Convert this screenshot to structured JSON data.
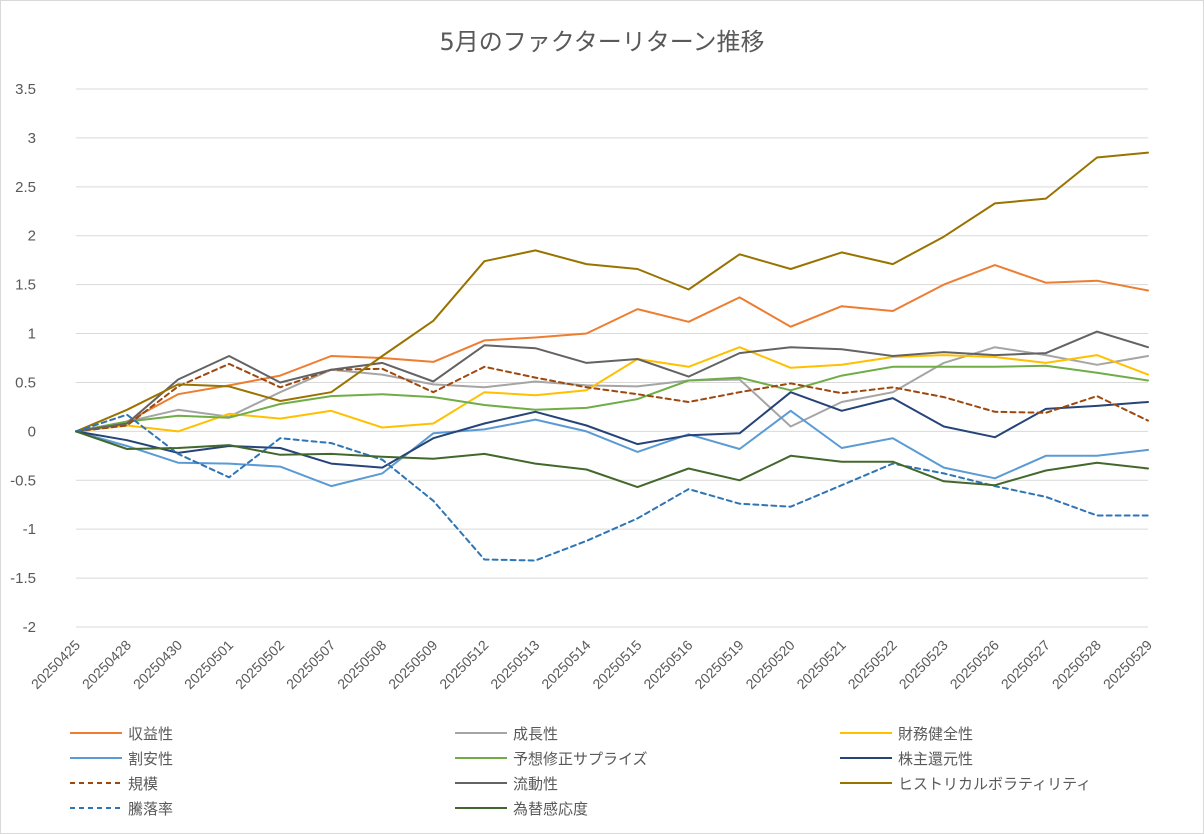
{
  "chart_data": {
    "type": "line",
    "title": "5月のファクターリターン推移",
    "xlabel": "",
    "ylabel": "",
    "ylim": [
      -2,
      3.5
    ],
    "y_ticks": [
      "3.5",
      "3",
      "2.5",
      "2",
      "1.5",
      "1",
      "0.5",
      "0",
      "-0.5",
      "-1",
      "-1.5",
      "-2"
    ],
    "grid": true,
    "legend_position": "bottom",
    "categories": [
      "20250425",
      "20250428",
      "20250430",
      "20250501",
      "20250502",
      "20250507",
      "20250508",
      "20250509",
      "20250512",
      "20250513",
      "20250514",
      "20250515",
      "20250516",
      "20250519",
      "20250520",
      "20250521",
      "20250522",
      "20250523",
      "20250526",
      "20250527",
      "20250528",
      "20250529"
    ],
    "series": [
      {
        "name": "収益性",
        "color": "#ED7D31",
        "dash": "solid",
        "values": [
          0,
          0.1,
          0.38,
          0.47,
          0.57,
          0.77,
          0.75,
          0.71,
          0.93,
          0.96,
          1.0,
          1.25,
          1.12,
          1.37,
          1.07,
          1.28,
          1.23,
          1.5,
          1.7,
          1.52,
          1.54,
          1.44
        ]
      },
      {
        "name": "成長性",
        "color": "#A5A5A5",
        "dash": "solid",
        "values": [
          0,
          0.1,
          0.22,
          0.15,
          0.4,
          0.63,
          0.58,
          0.48,
          0.45,
          0.51,
          0.47,
          0.46,
          0.52,
          0.53,
          0.05,
          0.3,
          0.4,
          0.7,
          0.86,
          0.78,
          0.68,
          0.77
        ]
      },
      {
        "name": "財務健全性",
        "color": "#FFC000",
        "dash": "solid",
        "values": [
          0,
          0.06,
          0.0,
          0.18,
          0.13,
          0.21,
          0.04,
          0.08,
          0.4,
          0.37,
          0.42,
          0.74,
          0.66,
          0.86,
          0.65,
          0.68,
          0.76,
          0.78,
          0.76,
          0.7,
          0.78,
          0.58
        ]
      },
      {
        "name": "割安性",
        "color": "#5B9BD5",
        "dash": "solid",
        "values": [
          0,
          -0.15,
          -0.32,
          -0.33,
          -0.36,
          -0.56,
          -0.43,
          -0.02,
          0.02,
          0.12,
          0.0,
          -0.21,
          -0.03,
          -0.18,
          0.21,
          -0.17,
          -0.07,
          -0.37,
          -0.48,
          -0.25,
          -0.25,
          -0.19
        ]
      },
      {
        "name": "予想修正サプライズ",
        "color": "#70AD47",
        "dash": "solid",
        "values": [
          0,
          0.1,
          0.16,
          0.14,
          0.28,
          0.36,
          0.38,
          0.35,
          0.27,
          0.22,
          0.24,
          0.33,
          0.52,
          0.55,
          0.42,
          0.57,
          0.66,
          0.66,
          0.66,
          0.67,
          0.6,
          0.52
        ]
      },
      {
        "name": "株主還元性",
        "color": "#264478",
        "dash": "solid",
        "values": [
          0,
          -0.09,
          -0.22,
          -0.15,
          -0.17,
          -0.33,
          -0.37,
          -0.07,
          0.08,
          0.2,
          0.06,
          -0.13,
          -0.04,
          -0.02,
          0.4,
          0.21,
          0.34,
          0.05,
          -0.06,
          0.23,
          0.26,
          0.3
        ]
      },
      {
        "name": "規模",
        "color": "#9E480E",
        "dash": "dashed",
        "values": [
          0,
          0.06,
          0.46,
          0.69,
          0.45,
          0.63,
          0.64,
          0.4,
          0.66,
          0.55,
          0.45,
          0.38,
          0.3,
          0.4,
          0.49,
          0.39,
          0.45,
          0.35,
          0.2,
          0.19,
          0.36,
          0.11
        ]
      },
      {
        "name": "流動性",
        "color": "#636363",
        "dash": "solid",
        "values": [
          0,
          0.08,
          0.53,
          0.77,
          0.5,
          0.63,
          0.7,
          0.51,
          0.88,
          0.85,
          0.7,
          0.74,
          0.56,
          0.8,
          0.86,
          0.84,
          0.77,
          0.81,
          0.78,
          0.8,
          1.02,
          0.86
        ]
      },
      {
        "name": "ヒストリカルボラティリティ",
        "color": "#997300",
        "dash": "solid",
        "values": [
          0,
          0.22,
          0.48,
          0.46,
          0.31,
          0.4,
          0.77,
          1.13,
          1.74,
          1.85,
          1.71,
          1.66,
          1.45,
          1.81,
          1.66,
          1.83,
          1.71,
          1.99,
          2.33,
          2.38,
          2.8,
          2.85
        ]
      },
      {
        "name": "騰落率",
        "color": "#2E75B6",
        "dash": "dashed",
        "values": [
          0,
          0.17,
          -0.23,
          -0.47,
          -0.07,
          -0.12,
          -0.29,
          -0.71,
          -1.31,
          -1.32,
          -1.12,
          -0.89,
          -0.59,
          -0.74,
          -0.77,
          -0.55,
          -0.33,
          -0.43,
          -0.56,
          -0.67,
          -0.86,
          -0.86
        ]
      },
      {
        "name": "為替感応度",
        "color": "#43682B",
        "dash": "solid",
        "values": [
          0,
          -0.18,
          -0.17,
          -0.14,
          -0.24,
          -0.23,
          -0.26,
          -0.28,
          -0.23,
          -0.33,
          -0.39,
          -0.57,
          -0.38,
          -0.5,
          -0.25,
          -0.31,
          -0.31,
          -0.51,
          -0.55,
          -0.4,
          -0.32,
          -0.38
        ]
      }
    ]
  }
}
